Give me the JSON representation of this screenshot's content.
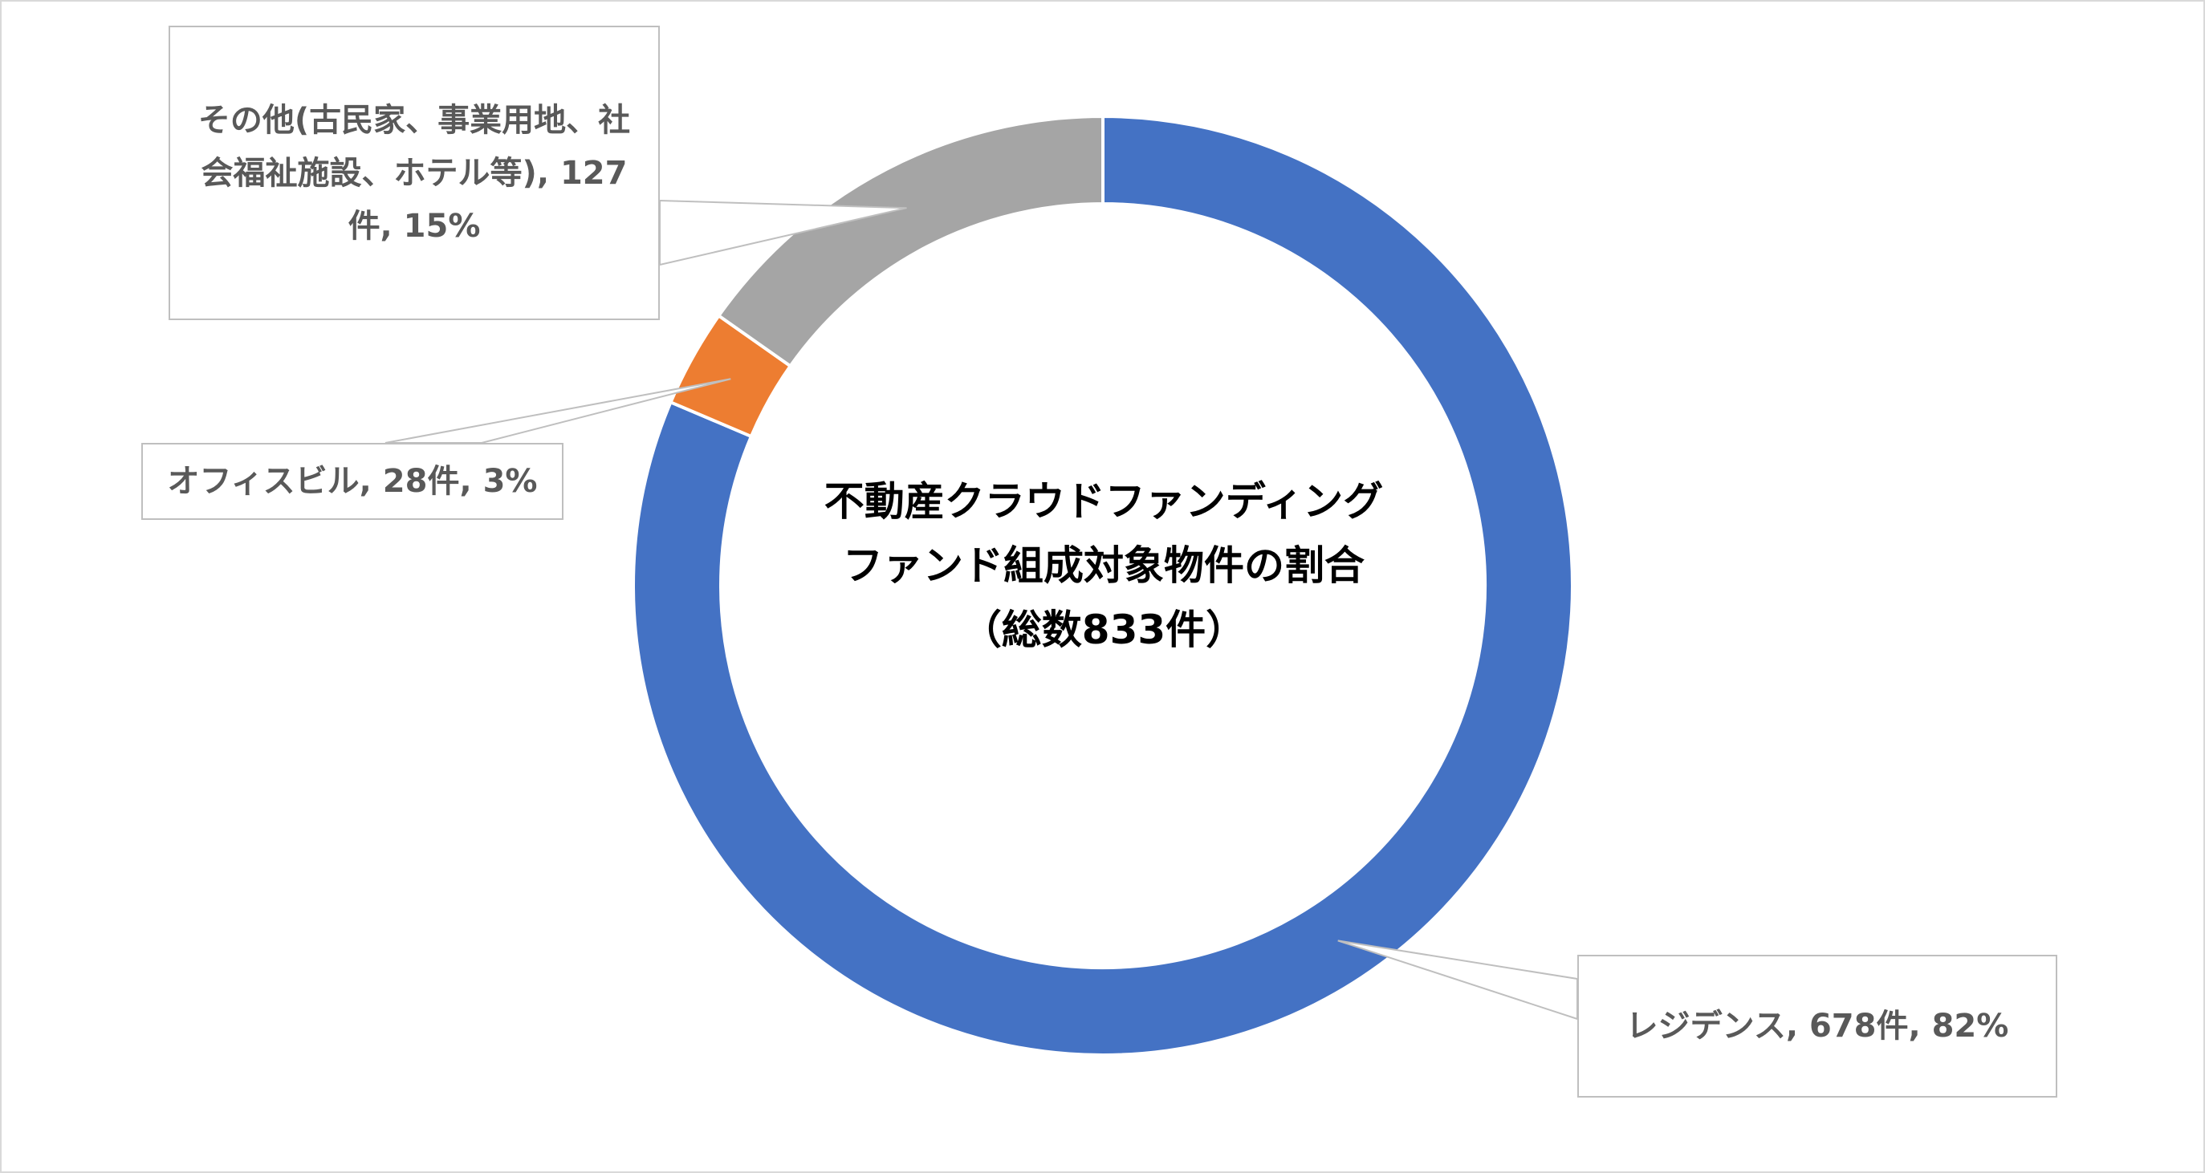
{
  "chart_data": {
    "type": "pie",
    "variant": "doughnut",
    "title_lines": [
      "不動産クラウドファンディング",
      "ファンド組成対象物件の割合",
      "（総数833件）"
    ],
    "slices": [
      {
        "name": "レジデンス",
        "count": 678,
        "percent": 82,
        "color": "#4472C4",
        "label": "レジデンス, 678件, 82%"
      },
      {
        "name": "オフィスビル",
        "count": 28,
        "percent": 3,
        "color": "#ED7D31",
        "label": "オフィスビル, 28件, 3%"
      },
      {
        "name": "その他(古民家、事業用地、社会福祉施設、ホテル等)",
        "count": 127,
        "percent": 15,
        "color": "#A5A5A5",
        "label": "その他(古民家、事業用地、社会福祉施設、ホテル等), 127件, 15%"
      }
    ],
    "legend": "none"
  }
}
